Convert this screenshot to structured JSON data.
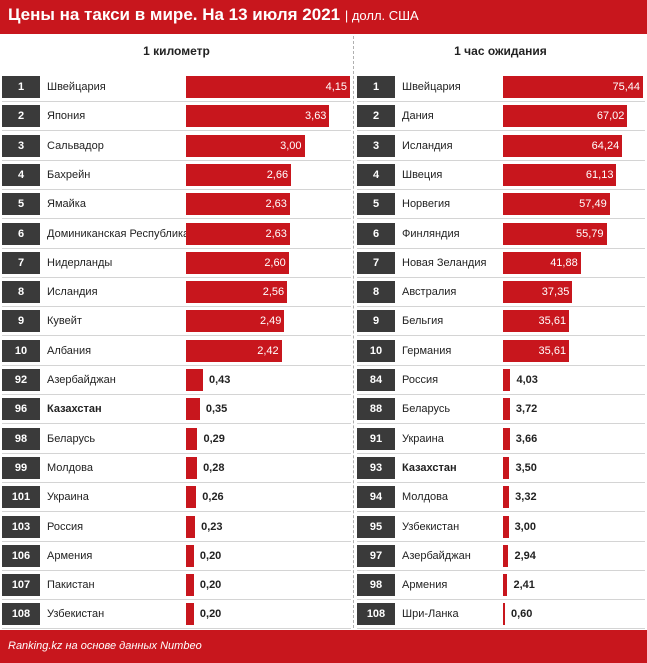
{
  "header": {
    "title": "Цены на такси в мире. На 13 июля 2021",
    "unit": "| долл. США"
  },
  "footer": {
    "source": "Ranking.kz на основе данных Numbeo"
  },
  "colors": {
    "accent": "#c8161d",
    "rank_box": "#3a3a3a"
  },
  "chart_data": [
    {
      "type": "bar",
      "title": "1 километр",
      "xlim": [
        0,
        4.15
      ],
      "rows": [
        {
          "rank": "1",
          "name": "Швейцария",
          "value": 4.15,
          "label": "4,15",
          "highlight": false
        },
        {
          "rank": "2",
          "name": "Япония",
          "value": 3.63,
          "label": "3,63",
          "highlight": false
        },
        {
          "rank": "3",
          "name": "Сальвадор",
          "value": 3.0,
          "label": "3,00",
          "highlight": false
        },
        {
          "rank": "4",
          "name": "Бахрейн",
          "value": 2.66,
          "label": "2,66",
          "highlight": false
        },
        {
          "rank": "5",
          "name": "Ямайка",
          "value": 2.63,
          "label": "2,63",
          "highlight": false
        },
        {
          "rank": "6",
          "name": "Доминиканская Республика",
          "value": 2.63,
          "label": "2,63",
          "highlight": false
        },
        {
          "rank": "7",
          "name": "Нидерланды",
          "value": 2.6,
          "label": "2,60",
          "highlight": false
        },
        {
          "rank": "8",
          "name": "Исландия",
          "value": 2.56,
          "label": "2,56",
          "highlight": false
        },
        {
          "rank": "9",
          "name": "Кувейт",
          "value": 2.49,
          "label": "2,49",
          "highlight": false
        },
        {
          "rank": "10",
          "name": "Албания",
          "value": 2.42,
          "label": "2,42",
          "highlight": false
        },
        {
          "rank": "92",
          "name": "Азербайджан",
          "value": 0.43,
          "label": "0,43",
          "highlight": false
        },
        {
          "rank": "96",
          "name": "Казахстан",
          "value": 0.35,
          "label": "0,35",
          "highlight": true
        },
        {
          "rank": "98",
          "name": "Беларусь",
          "value": 0.29,
          "label": "0,29",
          "highlight": false
        },
        {
          "rank": "99",
          "name": "Молдова",
          "value": 0.28,
          "label": "0,28",
          "highlight": false
        },
        {
          "rank": "101",
          "name": "Украина",
          "value": 0.26,
          "label": "0,26",
          "highlight": false
        },
        {
          "rank": "103",
          "name": "Россия",
          "value": 0.23,
          "label": "0,23",
          "highlight": false
        },
        {
          "rank": "106",
          "name": "Армения",
          "value": 0.2,
          "label": "0,20",
          "highlight": false
        },
        {
          "rank": "107",
          "name": "Пакистан",
          "value": 0.2,
          "label": "0,20",
          "highlight": false
        },
        {
          "rank": "108",
          "name": "Узбекистан",
          "value": 0.2,
          "label": "0,20",
          "highlight": false
        }
      ]
    },
    {
      "type": "bar",
      "title": "1 час ожидания",
      "xlim": [
        0,
        75.44
      ],
      "rows": [
        {
          "rank": "1",
          "name": "Швейцария",
          "value": 75.44,
          "label": "75,44",
          "highlight": false
        },
        {
          "rank": "2",
          "name": "Дания",
          "value": 67.02,
          "label": "67,02",
          "highlight": false
        },
        {
          "rank": "3",
          "name": "Исландия",
          "value": 64.24,
          "label": "64,24",
          "highlight": false
        },
        {
          "rank": "4",
          "name": "Швеция",
          "value": 61.13,
          "label": "61,13",
          "highlight": false
        },
        {
          "rank": "5",
          "name": "Норвегия",
          "value": 57.49,
          "label": "57,49",
          "highlight": false
        },
        {
          "rank": "6",
          "name": "Финляндия",
          "value": 55.79,
          "label": "55,79",
          "highlight": false
        },
        {
          "rank": "7",
          "name": "Новая Зеландия",
          "value": 41.88,
          "label": "41,88",
          "highlight": false
        },
        {
          "rank": "8",
          "name": "Австралия",
          "value": 37.35,
          "label": "37,35",
          "highlight": false
        },
        {
          "rank": "9",
          "name": "Бельгия",
          "value": 35.61,
          "label": "35,61",
          "highlight": false
        },
        {
          "rank": "10",
          "name": "Германия",
          "value": 35.61,
          "label": "35,61",
          "highlight": false
        },
        {
          "rank": "84",
          "name": "Россия",
          "value": 4.03,
          "label": "4,03",
          "highlight": false
        },
        {
          "rank": "88",
          "name": "Беларусь",
          "value": 3.72,
          "label": "3,72",
          "highlight": false
        },
        {
          "rank": "91",
          "name": "Украина",
          "value": 3.66,
          "label": "3,66",
          "highlight": false
        },
        {
          "rank": "93",
          "name": "Казахстан",
          "value": 3.5,
          "label": "3,50",
          "highlight": true
        },
        {
          "rank": "94",
          "name": "Молдова",
          "value": 3.32,
          "label": "3,32",
          "highlight": false
        },
        {
          "rank": "95",
          "name": "Узбекистан",
          "value": 3.0,
          "label": "3,00",
          "highlight": false
        },
        {
          "rank": "97",
          "name": "Азербайджан",
          "value": 2.94,
          "label": "2,94",
          "highlight": false
        },
        {
          "rank": "98",
          "name": "Армения",
          "value": 2.41,
          "label": "2,41",
          "highlight": false
        },
        {
          "rank": "108",
          "name": "Шри-Ланка",
          "value": 0.6,
          "label": "0,60",
          "highlight": false
        }
      ]
    }
  ]
}
